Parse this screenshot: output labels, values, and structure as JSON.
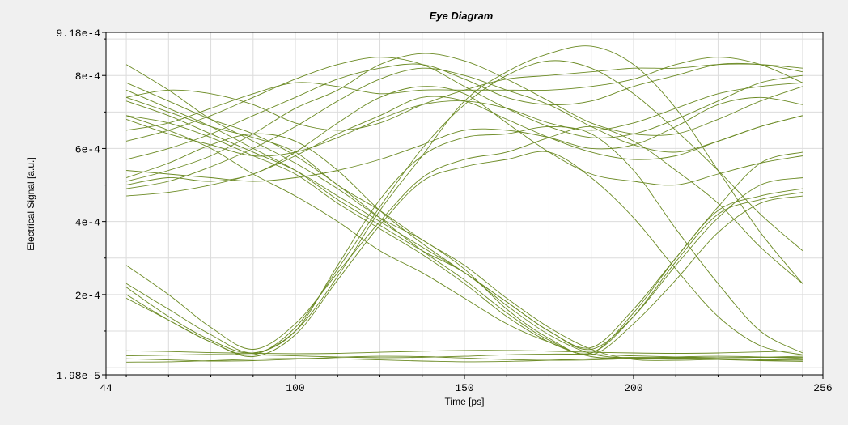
{
  "chart_data": {
    "type": "line",
    "title": "Eye Diagram",
    "xlabel": "Time [ps]",
    "ylabel": "Electrical Signal [a.u.]",
    "xlim": [
      44,
      256
    ],
    "ylim": [
      -1.98e-05,
      0.000918
    ],
    "grid": true,
    "legend": "none",
    "colors": {
      "trace": "#6b8a23",
      "plot_bg": "#ffffff",
      "grid": "#dcdcdc",
      "axis": "#000000",
      "outer_bg": "#f0f0f0"
    },
    "x_ticks": [
      {
        "value": 44,
        "label": "44"
      },
      {
        "value": 100,
        "label": "100"
      },
      {
        "value": 150,
        "label": "150"
      },
      {
        "value": 200,
        "label": "200"
      },
      {
        "value": 256,
        "label": "256"
      }
    ],
    "y_ticks": [
      {
        "value": -1.98e-05,
        "label": "-1.98e-5"
      },
      {
        "value": 0.0002,
        "label": "2e-4"
      },
      {
        "value": 0.0004,
        "label": "4e-4"
      },
      {
        "value": 0.0006,
        "label": "6e-4"
      },
      {
        "value": 0.0008,
        "label": "8e-4"
      },
      {
        "value": 0.000918,
        "label": "9.18e-4"
      }
    ],
    "x": [
      50,
      62.5,
      75,
      87.5,
      100,
      112.5,
      125,
      137.5,
      150,
      162.5,
      175,
      187.5,
      200,
      212.5,
      225,
      237.5,
      250
    ],
    "series": [
      {
        "values": [
          0.00076,
          0.00071,
          0.00066,
          0.0006,
          0.00054,
          0.00046,
          0.00039,
          0.00032,
          0.00026,
          0.00017,
          9e-05,
          3.8e-05,
          2.6e-05,
          2.6e-05,
          2.4e-05,
          2.2e-05,
          2e-05
        ]
      },
      {
        "values": [
          0.00083,
          0.00076,
          0.00068,
          0.00062,
          0.00056,
          0.00049,
          0.00041,
          0.00035,
          0.00027,
          0.00016,
          8e-05,
          3.5e-05,
          0.00012,
          0.00024,
          0.00037,
          0.00045,
          0.00047
        ]
      },
      {
        "values": [
          0.00073,
          0.00069,
          0.00064,
          0.00059,
          0.00054,
          0.00047,
          0.0004,
          0.00033,
          0.00026,
          0.00018,
          0.0001,
          5e-05,
          0.00014,
          0.00028,
          0.00041,
          0.0005,
          0.00052
        ]
      },
      {
        "values": [
          0.00069,
          0.00067,
          0.00063,
          0.00058,
          0.00053,
          0.00045,
          0.00038,
          0.00031,
          0.00023,
          0.00014,
          7e-05,
          3e-05,
          2.8e-05,
          2.7e-05,
          2.7e-05,
          2.8e-05,
          2.8e-05
        ]
      },
      {
        "values": [
          0.00078,
          0.00073,
          0.00068,
          0.00064,
          0.00058,
          0.0005,
          0.00041,
          0.00032,
          0.00024,
          0.00015,
          7.5e-05,
          4e-05,
          0.00015,
          0.0003,
          0.00044,
          0.00056,
          0.00059
        ]
      },
      {
        "values": [
          0.00069,
          0.00065,
          0.0006,
          0.00053,
          0.00047,
          0.0004,
          0.00032,
          0.00026,
          0.00019,
          0.00012,
          7e-05,
          4e-05,
          0.00014,
          0.00029,
          0.00042,
          0.00046,
          0.00048
        ]
      },
      {
        "values": [
          0.00074,
          0.0007,
          0.00066,
          0.00063,
          0.00059,
          0.0005,
          0.00043,
          0.00035,
          0.00028,
          0.00019,
          0.00011,
          5e-05,
          2.2e-05,
          2e-05,
          2.2e-05,
          2e-05,
          2.1e-05
        ]
      },
      {
        "values": [
          0.00052,
          0.00056,
          0.00061,
          0.00064,
          0.00062,
          0.00054,
          0.00043,
          0.00034,
          0.00026,
          0.00018,
          0.0001,
          5.5e-05,
          0.00016,
          0.0003,
          0.00043,
          0.00047,
          0.00049
        ]
      },
      {
        "values": [
          0.00028,
          0.0002,
          0.00011,
          5e-05,
          0.00012,
          0.00026,
          0.0004,
          0.00052,
          0.00057,
          0.00059,
          0.00063,
          0.00066,
          0.00062,
          0.00054,
          0.00045,
          0.00033,
          0.00023
        ]
      },
      {
        "values": [
          0.00023,
          0.00016,
          9e-05,
          4e-05,
          0.0001,
          0.00025,
          0.00043,
          0.00058,
          0.00073,
          0.00081,
          0.00086,
          0.00088,
          0.00083,
          0.00071,
          0.00054,
          0.00037,
          0.00023
        ]
      },
      {
        "values": [
          0.00019,
          0.00013,
          7e-05,
          3.5e-05,
          0.00011,
          0.00027,
          0.00044,
          0.0006,
          0.00072,
          0.0008,
          0.00084,
          0.00082,
          0.00075,
          0.00065,
          0.00054,
          0.00042,
          0.00032
        ]
      },
      {
        "values": [
          0.00022,
          0.00014,
          7.5e-05,
          4e-05,
          0.0001,
          0.00028,
          0.00046,
          0.00058,
          0.00063,
          0.00064,
          0.00066,
          0.00064,
          0.00054,
          0.00038,
          0.00023,
          0.0001,
          4e-05
        ]
      },
      {
        "values": [
          0.0002,
          0.00013,
          7e-05,
          3e-05,
          9e-05,
          0.00024,
          0.00039,
          0.00051,
          0.00055,
          0.00057,
          0.00059,
          0.00052,
          0.00041,
          0.00027,
          0.00014,
          6e-05,
          3.5e-05
        ]
      },
      {
        "values": [
          0.00049,
          0.00051,
          0.00055,
          0.0006,
          0.00066,
          0.00073,
          0.00079,
          0.00082,
          0.0008,
          0.00076,
          0.00072,
          0.00066,
          0.00061,
          0.00059,
          0.00062,
          0.00066,
          0.00069
        ]
      },
      {
        "values": [
          0.00051,
          0.00054,
          0.00058,
          0.00064,
          0.00071,
          0.00076,
          0.00083,
          0.00086,
          0.00084,
          0.00079,
          0.00073,
          0.00067,
          0.00064,
          0.00064,
          0.00068,
          0.00073,
          0.00077
        ]
      },
      {
        "values": [
          0.00057,
          0.0006,
          0.00064,
          0.00069,
          0.00074,
          0.00079,
          0.00082,
          0.00083,
          0.00079,
          0.00074,
          0.00072,
          0.00073,
          0.00077,
          0.0008,
          0.00083,
          0.00083,
          0.00081
        ]
      },
      {
        "values": [
          0.00047,
          0.00048,
          0.0005,
          0.00053,
          0.00058,
          0.00064,
          0.00069,
          0.00074,
          0.00073,
          0.00068,
          0.00063,
          0.00059,
          0.00057,
          0.00058,
          0.00062,
          0.00066,
          0.00069
        ]
      },
      {
        "values": [
          0.00062,
          0.00065,
          0.00069,
          0.00074,
          0.00079,
          0.00083,
          0.00085,
          0.00083,
          0.00077,
          0.00071,
          0.00066,
          0.00063,
          0.00064,
          0.00068,
          0.00073,
          0.00078,
          0.0008
        ]
      },
      {
        "values": [
          0.0005,
          0.00052,
          0.00051,
          0.00053,
          0.00059,
          0.00067,
          0.00074,
          0.00077,
          0.00075,
          0.00067,
          0.00059,
          0.00053,
          0.00051,
          0.0005,
          0.00053,
          0.00056,
          0.00058
        ]
      },
      {
        "values": [
          0.00065,
          0.00067,
          0.00071,
          0.00075,
          0.00078,
          0.00077,
          0.00075,
          0.00076,
          0.00076,
          0.00076,
          0.00076,
          0.00077,
          0.00079,
          0.00083,
          0.00085,
          0.00083,
          0.00078
        ]
      },
      {
        "values": [
          0.00074,
          0.00076,
          0.00075,
          0.00072,
          0.00067,
          0.00065,
          0.00067,
          0.00072,
          0.00076,
          0.00079,
          0.0008,
          0.00081,
          0.00082,
          0.00082,
          0.00083,
          0.00083,
          0.00082
        ]
      },
      {
        "values": [
          0.00054,
          0.00053,
          0.00052,
          0.00051,
          0.00052,
          0.00054,
          0.00057,
          0.00061,
          0.00065,
          0.00065,
          0.00063,
          0.0006,
          0.00061,
          0.00066,
          0.00072,
          0.00074,
          0.00072
        ]
      },
      {
        "values": [
          0.00068,
          0.00064,
          0.00061,
          0.00058,
          0.00059,
          0.00063,
          0.00068,
          0.00072,
          0.00073,
          0.00071,
          0.00067,
          0.00065,
          0.00067,
          0.00071,
          0.00075,
          0.00077,
          0.00078
        ]
      },
      {
        "values": [
          2.4e-05,
          2.1e-05,
          1.8e-05,
          1.9e-05,
          2.3e-05,
          2.8e-05,
          3.1e-05,
          3e-05,
          2.6e-05,
          2.2e-05,
          2e-05,
          2.1e-05,
          2.5e-05,
          2.9e-05,
          3.1e-05,
          2.9e-05,
          2.5e-05
        ]
      },
      {
        "values": [
          4.6e-05,
          4.4e-05,
          4.1e-05,
          3.9e-05,
          3.8e-05,
          3.9e-05,
          4.2e-05,
          4.5e-05,
          4.7e-05,
          4.7e-05,
          4.5e-05,
          4.2e-05,
          4e-05,
          3.9e-05,
          4e-05,
          4.3e-05,
          4.6e-05
        ]
      },
      {
        "values": [
          3.2e-05,
          3.4e-05,
          3.6e-05,
          3.5e-05,
          3.2e-05,
          2.9e-05,
          2.7e-05,
          2.8e-05,
          3.1e-05,
          3.5e-05,
          3.7e-05,
          3.6e-05,
          3.2e-05,
          2.9e-05,
          2.7e-05,
          2.8e-05,
          3.1e-05
        ]
      },
      {
        "values": [
          1.5e-05,
          1.6e-05,
          1.9e-05,
          2.3e-05,
          2.5e-05,
          2.4e-05,
          2.1e-05,
          1.8e-05,
          1.6e-05,
          1.7e-05,
          2e-05,
          2.4e-05,
          2.6e-05,
          2.5e-05,
          2.2e-05,
          1.9e-05,
          1.7e-05
        ]
      }
    ]
  }
}
